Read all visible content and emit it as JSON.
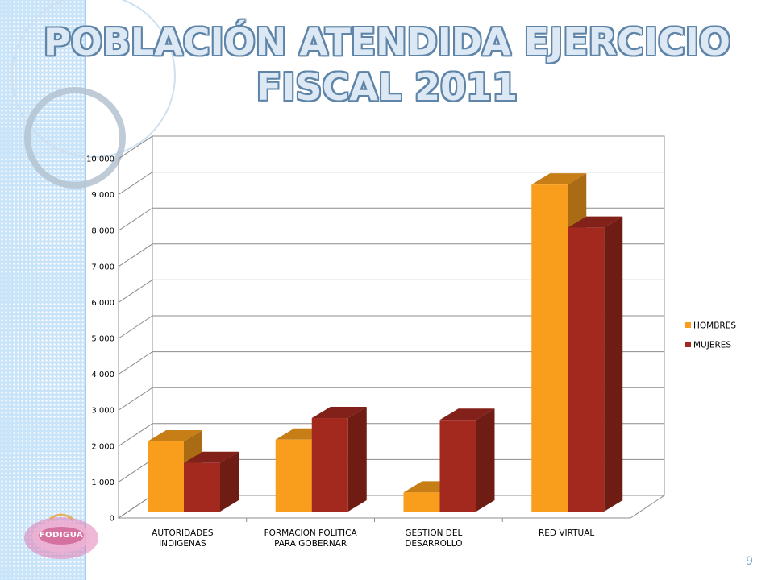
{
  "slide": {
    "title": "POBLACIÓN ATENDIDA EJERCICIO FISCAL 2011",
    "page_number": "9",
    "logo_text": "FODIGUA"
  },
  "chart_data": {
    "type": "bar",
    "title": "",
    "xlabel": "",
    "ylabel": "",
    "categories": [
      [
        "AUTORIDADES",
        "INDIGENAS"
      ],
      [
        "FORMACION POLITICA",
        "PARA GOBERNAR"
      ],
      [
        "GESTION DEL",
        "DESARROLLO"
      ],
      [
        "RED VIRTUAL"
      ]
    ],
    "series": [
      {
        "name": "HOMBRES",
        "values": [
          1950,
          2000,
          530,
          9100
        ]
      },
      {
        "name": "MUJERES",
        "values": [
          1350,
          2600,
          2550,
          7900
        ]
      }
    ],
    "ylim": [
      0,
      10000
    ],
    "yticks": [
      0,
      1000,
      2000,
      3000,
      4000,
      5000,
      6000,
      7000,
      8000,
      9000,
      10000
    ],
    "ytick_labels": [
      "0",
      "1 000",
      "2 000",
      "3 000",
      "4 000",
      "5 000",
      "6 000",
      "7 000",
      "8 000",
      "9 000",
      "10 000"
    ],
    "grid": true,
    "legend_position": "right",
    "style": "3d-clustered-column",
    "colors": {
      "HOMBRES": "#f99d1c",
      "MUJERES": "#a3291f",
      "gridline": "#8c8c8c"
    }
  }
}
